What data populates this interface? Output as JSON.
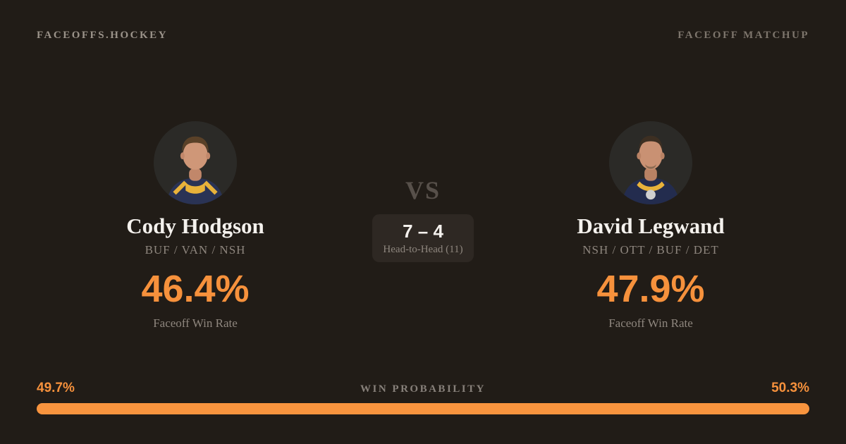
{
  "header": {
    "brand": "FACEOFFS.HOCKEY",
    "label": "FACEOFF MATCHUP"
  },
  "players": {
    "left": {
      "name": "Cody Hodgson",
      "teams": "BUF / VAN / NSH",
      "win_rate": "46.4%",
      "win_rate_label": "Faceoff Win Rate",
      "avatar": "player-portrait"
    },
    "right": {
      "name": "David Legwand",
      "teams": "NSH / OTT / BUF / DET",
      "win_rate": "47.9%",
      "win_rate_label": "Faceoff Win Rate",
      "avatar": "player-portrait"
    }
  },
  "center": {
    "vs": "VS",
    "h2h_score": "7 – 4",
    "h2h_label": "Head-to-Head (11)"
  },
  "win_probability": {
    "title": "WIN PROBABILITY",
    "left_pct_label": "49.7%",
    "right_pct_label": "50.3%",
    "left_value": 49.7,
    "right_value": 50.3
  },
  "colors": {
    "background": "#211c17",
    "accent_orange": "#f6913c",
    "bar_orange": "#f8943e",
    "text_primary": "#f4f1ed",
    "text_muted": "#8e867e",
    "vs_text": "#57504a",
    "box_background": "#2e2823",
    "brand_text": "#9b938a"
  }
}
